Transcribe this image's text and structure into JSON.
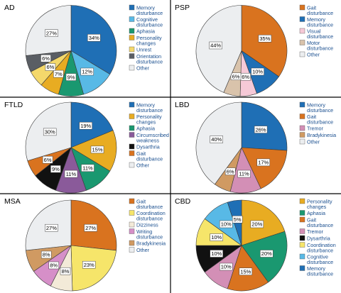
{
  "colors": {
    "memory": "#1f6fb5",
    "cognitive": "#58b9e6",
    "aphasia": "#1a9870",
    "personality": "#e8ac22",
    "unrest": "#f4d86b",
    "orientation": "#5a5e64",
    "other": "#eceef0",
    "gait": "#d9731f",
    "visual": "#f6c9d7",
    "motor": "#d9c3ab",
    "circumscribed": "#8a5a9a",
    "dysarthria": "#111111",
    "tremor": "#d38fb6",
    "bradykinesia": "#d09a62",
    "coordination": "#f6e56a",
    "dizziness": "#f3ead8",
    "writing": "#d68fc8"
  },
  "chart_data": [
    {
      "type": "pie",
      "title": "AD",
      "slices": [
        {
          "name": "Memory disturbance",
          "legend": [
            "Memory",
            "disturbance"
          ],
          "value": 34,
          "label": "34%",
          "color_key": "memory"
        },
        {
          "name": "Cognitive disturbance",
          "legend": [
            "Cognitive",
            "disturbance"
          ],
          "value": 12,
          "label": "12%",
          "color_key": "cognitive"
        },
        {
          "name": "Aphasia",
          "legend": [
            "Aphasia"
          ],
          "value": 9,
          "label": "9%",
          "color_key": "aphasia"
        },
        {
          "name": "Personality changes",
          "legend": [
            "Personality",
            "changes"
          ],
          "value": 7,
          "label": "7%",
          "color_key": "personality"
        },
        {
          "name": "Unrest",
          "legend": [
            "Unrest"
          ],
          "value": 6,
          "label": "6%",
          "color_key": "unrest"
        },
        {
          "name": "Orientation disturbance",
          "legend": [
            "Orientation",
            "disturbance"
          ],
          "value": 6,
          "label": "6%",
          "color_key": "orientation"
        },
        {
          "name": "Other",
          "legend": [
            "Other"
          ],
          "value": 27,
          "label": "27%",
          "color_key": "other"
        }
      ]
    },
    {
      "type": "pie",
      "title": "PSP",
      "slices": [
        {
          "name": "Gait disturbance",
          "legend": [
            "Gait",
            "disturbance"
          ],
          "value": 35,
          "label": "35%",
          "color_key": "gait"
        },
        {
          "name": "Memory disturbance",
          "legend": [
            "Memory",
            "disturbance"
          ],
          "value": 10,
          "label": "10%",
          "color_key": "memory"
        },
        {
          "name": "Visual disturbance",
          "legend": [
            "Visual",
            "disturbance"
          ],
          "value": 6,
          "label": "6%",
          "color_key": "visual"
        },
        {
          "name": "Motor disturbance",
          "legend": [
            "Motor",
            "disturbance"
          ],
          "value": 6,
          "label": "6%",
          "color_key": "motor"
        },
        {
          "name": "Other",
          "legend": [
            "Other"
          ],
          "value": 44,
          "label": "44%",
          "color_key": "other"
        }
      ]
    },
    {
      "type": "pie",
      "title": "FTLD",
      "slices": [
        {
          "name": "Memory disturbance",
          "legend": [
            "Memory",
            "disturbance"
          ],
          "value": 19,
          "label": "19%",
          "color_key": "memory"
        },
        {
          "name": "Personality changes",
          "legend": [
            "Personality",
            "changes"
          ],
          "value": 15,
          "label": "15%",
          "color_key": "personality"
        },
        {
          "name": "Aphasia",
          "legend": [
            "Aphasia"
          ],
          "value": 11,
          "label": "11%",
          "color_key": "aphasia"
        },
        {
          "name": "Circumscribed weakness",
          "legend": [
            "Circumscribed",
            "weakness"
          ],
          "value": 11,
          "label": "11%",
          "color_key": "circumscribed"
        },
        {
          "name": "Dysarthria",
          "legend": [
            "Dysarthria"
          ],
          "value": 9,
          "label": "9%",
          "color_key": "dysarthria"
        },
        {
          "name": "Gait disturbance",
          "legend": [
            "Gait",
            "disturbance"
          ],
          "value": 6,
          "label": "6%",
          "color_key": "gait"
        },
        {
          "name": "Other",
          "legend": [
            "Other"
          ],
          "value": 30,
          "label": "30%",
          "color_key": "other"
        }
      ]
    },
    {
      "type": "pie",
      "title": "LBD",
      "slices": [
        {
          "name": "Memory disturbance",
          "legend": [
            "Memory",
            "disturbance"
          ],
          "value": 26,
          "label": "26%",
          "color_key": "memory"
        },
        {
          "name": "Gait disturbance",
          "legend": [
            "Gait",
            "disturbance"
          ],
          "value": 17,
          "label": "17%",
          "color_key": "gait"
        },
        {
          "name": "Tremor",
          "legend": [
            "Tremor"
          ],
          "value": 11,
          "label": "11%",
          "color_key": "tremor"
        },
        {
          "name": "Bradykinesia",
          "legend": [
            "Bradykinesia"
          ],
          "value": 6,
          "label": "6%",
          "color_key": "bradykinesia"
        },
        {
          "name": "Other",
          "legend": [
            "Other"
          ],
          "value": 40,
          "label": "40%",
          "color_key": "other"
        }
      ]
    },
    {
      "type": "pie",
      "title": "MSA",
      "slices": [
        {
          "name": "Gait disturbance",
          "legend": [
            "Gait",
            "disturbance"
          ],
          "value": 27,
          "label": "27%",
          "color_key": "gait"
        },
        {
          "name": "Coordination disturbance",
          "legend": [
            "Coordination",
            "disturbance"
          ],
          "value": 23,
          "label": "23%",
          "color_key": "coordination"
        },
        {
          "name": "Dizziness",
          "legend": [
            "Dizziness"
          ],
          "value": 8,
          "label": "8%",
          "color_key": "dizziness"
        },
        {
          "name": "Writing disturbance",
          "legend": [
            "Writing",
            "disturbance"
          ],
          "value": 8,
          "label": "8%",
          "color_key": "writing"
        },
        {
          "name": "Bradykinesia",
          "legend": [
            "Bradykinesia"
          ],
          "value": 8,
          "label": "8%",
          "color_key": "bradykinesia"
        },
        {
          "name": "Other",
          "legend": [
            "Other"
          ],
          "value": 27,
          "label": "27%",
          "color_key": "other"
        }
      ]
    },
    {
      "type": "pie",
      "title": "CBD",
      "slices": [
        {
          "name": "Personality changes",
          "legend": [
            "Personality",
            "changes"
          ],
          "value": 20,
          "label": "20%",
          "color_key": "personality"
        },
        {
          "name": "Aphasia",
          "legend": [
            "Aphasia"
          ],
          "value": 20,
          "label": "20%",
          "color_key": "aphasia"
        },
        {
          "name": "Gait disturbance",
          "legend": [
            "Gait",
            "disturbance"
          ],
          "value": 15,
          "label": "15%",
          "color_key": "gait"
        },
        {
          "name": "Tremor",
          "legend": [
            "Tremor"
          ],
          "value": 10,
          "label": "10%",
          "color_key": "tremor"
        },
        {
          "name": "Dysarthria",
          "legend": [
            "Dysarthria"
          ],
          "value": 10,
          "label": "10%",
          "color_key": "dysarthria"
        },
        {
          "name": "Coordination disturbance",
          "legend": [
            "Coordination",
            "disturbance"
          ],
          "value": 10,
          "label": "10%",
          "color_key": "coordination"
        },
        {
          "name": "Cognitive disturbance",
          "legend": [
            "Cognitive",
            "disturbance"
          ],
          "value": 10,
          "label": "10%",
          "color_key": "cognitive"
        },
        {
          "name": "Memory disturbance",
          "legend": [
            "Memory",
            "disturbance"
          ],
          "value": 5,
          "label": "5%",
          "color_key": "memory"
        }
      ]
    }
  ]
}
